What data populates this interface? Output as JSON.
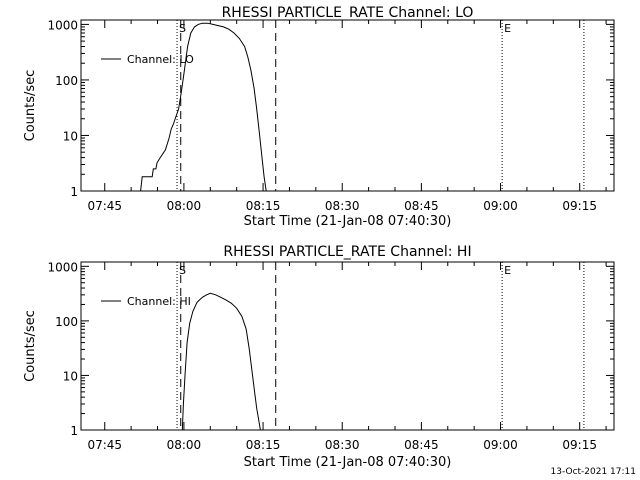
{
  "footer": {
    "timestamp": "13-Oct-2021 17:11"
  },
  "chart_data": [
    {
      "type": "line",
      "title": "RHESSI PARTICLE_RATE Channel: LO",
      "xlabel": "Start Time (21-Jan-08 07:40:30)",
      "ylabel": "Counts/sec",
      "xlim_minutes_after_start": [
        0,
        101
      ],
      "ylim": [
        1,
        1200
      ],
      "yscale": "log",
      "xtick_labels": [
        {
          "label": "07:45",
          "minute": 4.5
        },
        {
          "label": "08:00",
          "minute": 19.5
        },
        {
          "label": "08:15",
          "minute": 34.5
        },
        {
          "label": "08:30",
          "minute": 49.5
        },
        {
          "label": "08:45",
          "minute": 64.5
        },
        {
          "label": "09:00",
          "minute": 79.5
        },
        {
          "label": "09:15",
          "minute": 94.5
        }
      ],
      "ytick_labels": [
        {
          "label": "1",
          "value": 1
        },
        {
          "label": "10",
          "value": 10
        },
        {
          "label": "100",
          "value": 100
        },
        {
          "label": "1000",
          "value": 1000
        }
      ],
      "legend": {
        "label": "Channel: LO",
        "placement": "top-left"
      },
      "markers": [
        {
          "label": "S",
          "minute": 18.2,
          "style": "dotted"
        },
        {
          "label": "",
          "minute": 18.9,
          "style": "dashed"
        },
        {
          "label": "",
          "minute": 36.9,
          "style": "dashed"
        },
        {
          "label": "E",
          "minute": 79.8,
          "style": "dotted"
        },
        {
          "label": "",
          "minute": 95.3,
          "style": "dotted"
        }
      ],
      "series": [
        {
          "x": [
            11.3,
            11.6,
            12.2,
            13.0,
            13.5,
            13.7,
            14.2,
            14.4,
            15.0,
            16.0,
            16.7,
            17.1,
            17.5,
            18.0,
            18.5,
            19.0,
            19.6,
            20.2,
            20.8,
            21.5,
            22.2,
            23.0,
            24.0,
            25.0,
            26.0,
            27.0,
            28.0,
            29.0,
            30.0,
            31.0,
            31.6,
            32.2,
            32.8,
            33.3,
            33.8,
            34.3,
            34.7,
            35.1
          ],
          "y": [
            1,
            1.8,
            1.8,
            1.8,
            1.8,
            2.5,
            2.5,
            3.2,
            4.0,
            5.5,
            9,
            13,
            16,
            22,
            30,
            60,
            150,
            400,
            700,
            900,
            1000,
            1050,
            1050,
            1000,
            950,
            900,
            820,
            700,
            560,
            400,
            260,
            150,
            70,
            30,
            11,
            4,
            1.8,
            1
          ]
        }
      ]
    },
    {
      "type": "line",
      "title": "RHESSI PARTICLE_RATE Channel: HI",
      "xlabel": "Start Time (21-Jan-08 07:40:30)",
      "ylabel": "Counts/sec",
      "xlim_minutes_after_start": [
        0,
        101
      ],
      "ylim": [
        1,
        1200
      ],
      "yscale": "log",
      "xtick_labels": [
        {
          "label": "07:45",
          "minute": 4.5
        },
        {
          "label": "08:00",
          "minute": 19.5
        },
        {
          "label": "08:15",
          "minute": 34.5
        },
        {
          "label": "08:30",
          "minute": 49.5
        },
        {
          "label": "08:45",
          "minute": 64.5
        },
        {
          "label": "09:00",
          "minute": 79.5
        },
        {
          "label": "09:15",
          "minute": 94.5
        }
      ],
      "ytick_labels": [
        {
          "label": "1",
          "value": 1
        },
        {
          "label": "10",
          "value": 10
        },
        {
          "label": "100",
          "value": 100
        },
        {
          "label": "1000",
          "value": 1000
        }
      ],
      "legend": {
        "label": "Channel: HI",
        "placement": "top-left"
      },
      "markers": [
        {
          "label": "S",
          "minute": 18.2,
          "style": "dotted"
        },
        {
          "label": "",
          "minute": 18.9,
          "style": "dashed"
        },
        {
          "label": "",
          "minute": 36.9,
          "style": "dashed"
        },
        {
          "label": "E",
          "minute": 79.8,
          "style": "dotted"
        },
        {
          "label": "",
          "minute": 95.3,
          "style": "dotted"
        }
      ],
      "series": [
        {
          "x": [
            19.2,
            19.4,
            19.7,
            20.1,
            20.6,
            21.2,
            22.0,
            23.0,
            23.8,
            24.5,
            25.5,
            26.5,
            27.5,
            28.5,
            29.5,
            30.5,
            31.3,
            31.9,
            32.4,
            32.9,
            33.3,
            33.7,
            34.0
          ],
          "y": [
            1,
            3,
            10,
            40,
            90,
            150,
            220,
            270,
            300,
            320,
            300,
            270,
            240,
            210,
            170,
            120,
            70,
            30,
            12,
            5,
            2.5,
            1.5,
            1
          ]
        }
      ]
    }
  ]
}
